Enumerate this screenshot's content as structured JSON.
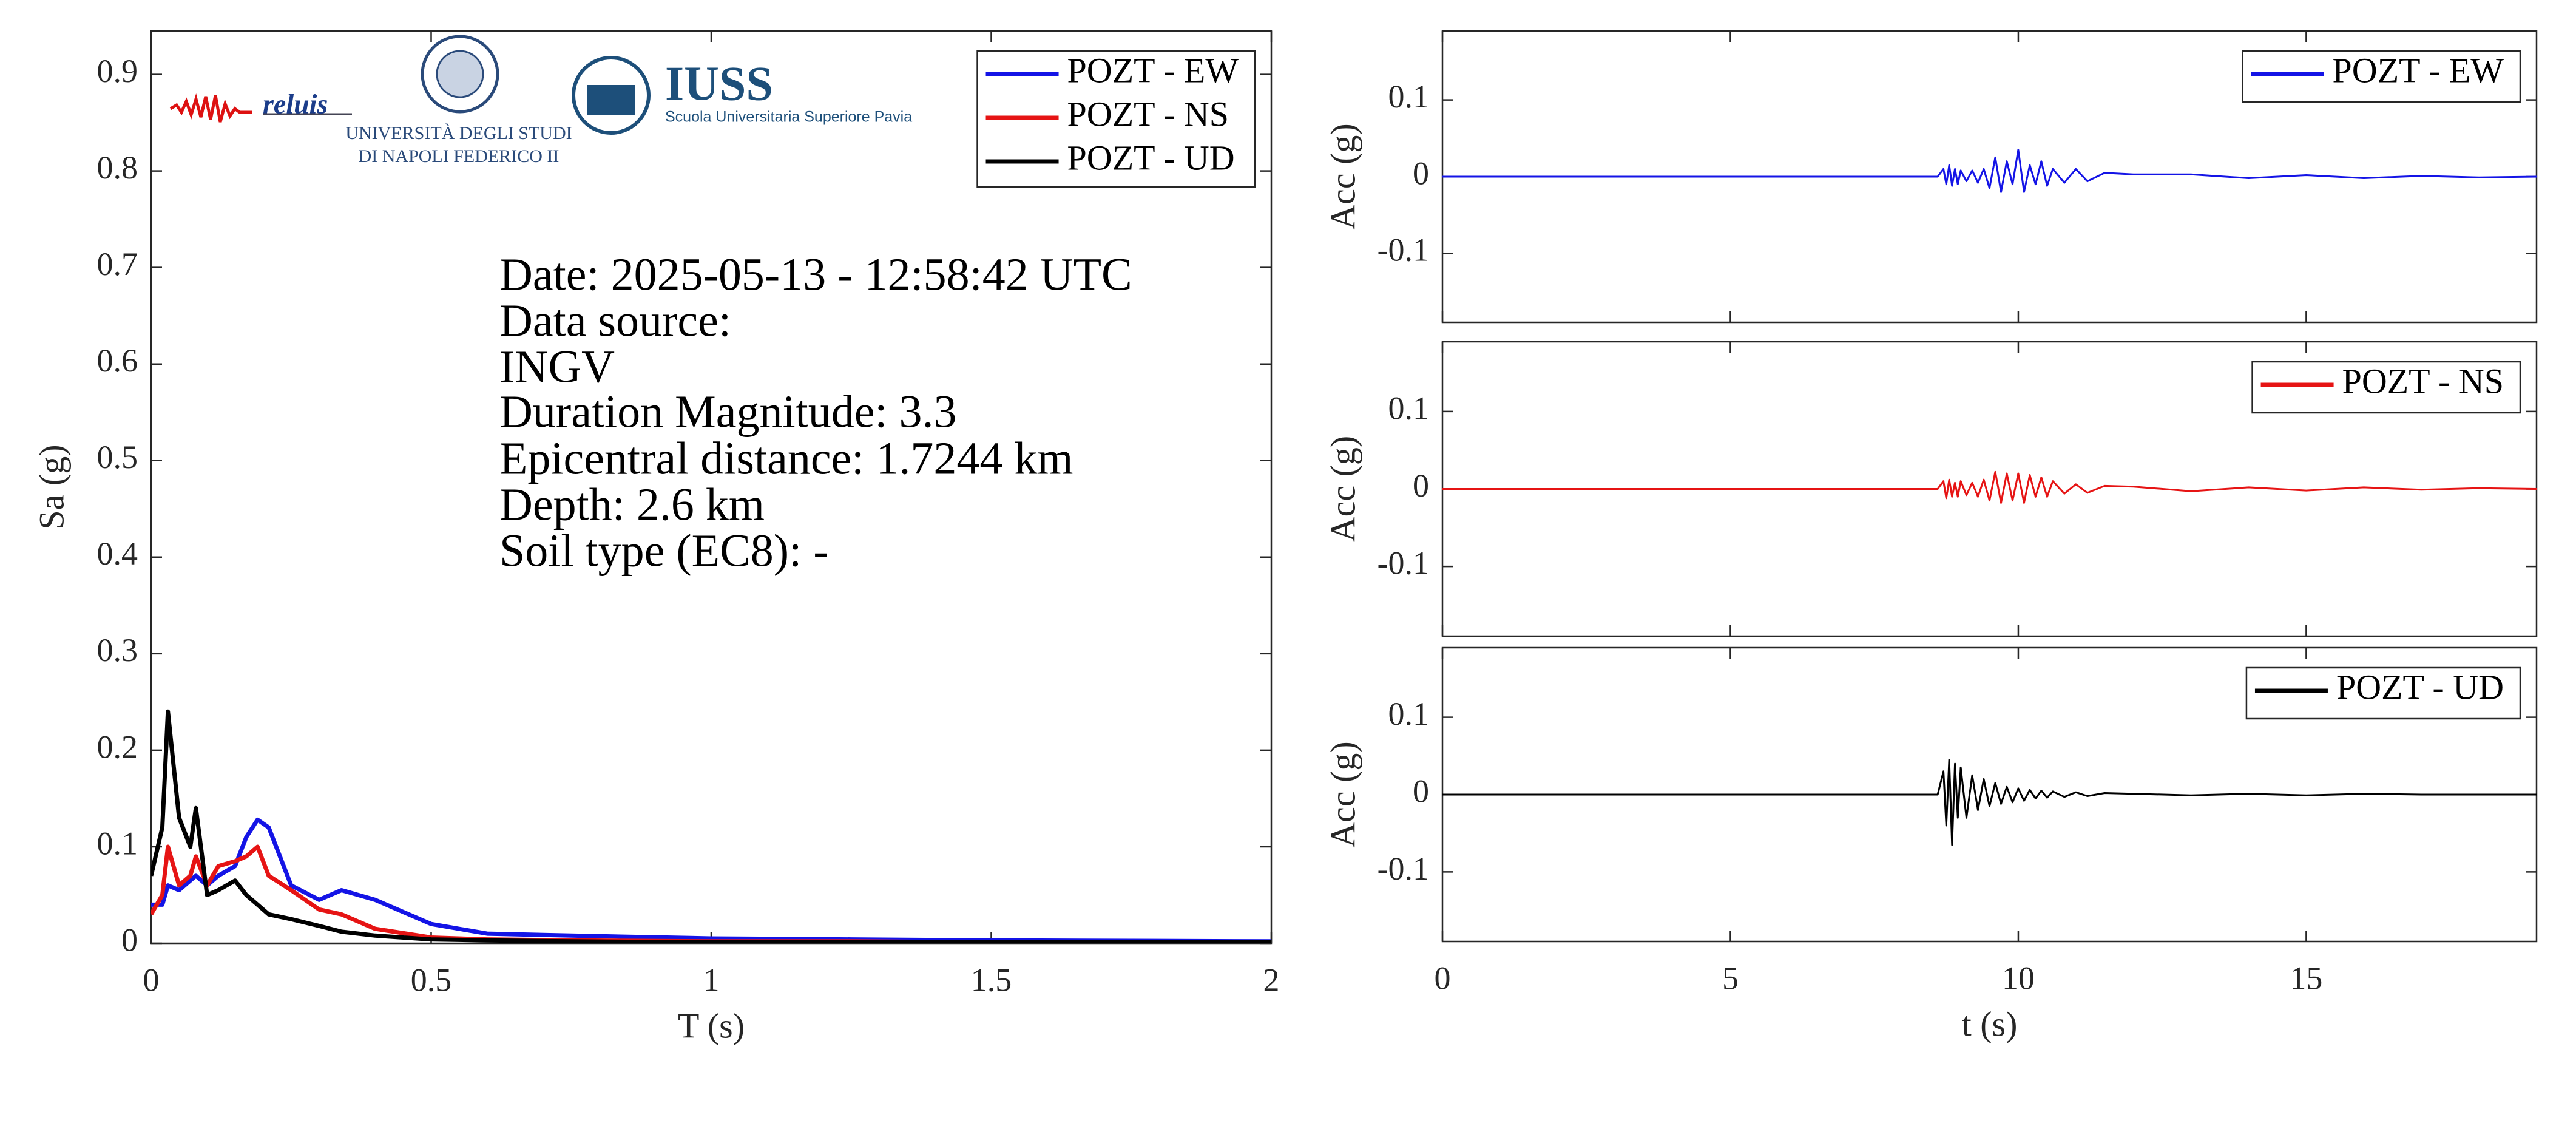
{
  "logos": [
    "reluis",
    "UNIVERSITÀ DEGLI STUDI",
    "DI NAPOLI FEDERICO II",
    "IUSS",
    "Scuola Universitaria Superiore Pavia"
  ],
  "chart_data": [
    {
      "type": "line",
      "xlabel": "T (s)",
      "ylabel": "Sa (g)",
      "x": [
        0,
        0.02,
        0.03,
        0.05,
        0.07,
        0.08,
        0.1,
        0.12,
        0.15,
        0.17,
        0.19,
        0.21,
        0.25,
        0.3,
        0.34,
        0.4,
        0.5,
        0.6,
        0.75,
        1.0,
        1.25,
        1.5,
        2.0
      ],
      "series": [
        {
          "name": "POZT - EW",
          "color": "#1414e6",
          "values": [
            0.04,
            0.04,
            0.06,
            0.055,
            0.065,
            0.07,
            0.06,
            0.07,
            0.08,
            0.11,
            0.128,
            0.12,
            0.06,
            0.045,
            0.055,
            0.045,
            0.02,
            0.01,
            0.008,
            0.005,
            0.004,
            0.003,
            0.002
          ]
        },
        {
          "name": "POZT - NS",
          "color": "#e61414",
          "values": [
            0.03,
            0.05,
            0.1,
            0.06,
            0.07,
            0.09,
            0.06,
            0.08,
            0.085,
            0.09,
            0.1,
            0.07,
            0.055,
            0.035,
            0.03,
            0.015,
            0.006,
            0.004,
            0.003,
            0.002,
            0.002,
            0.001,
            0.001
          ]
        },
        {
          "name": "POZT - UD",
          "color": "#000000",
          "values": [
            0.07,
            0.12,
            0.24,
            0.13,
            0.1,
            0.14,
            0.05,
            0.055,
            0.065,
            0.05,
            0.04,
            0.03,
            0.025,
            0.018,
            0.012,
            0.008,
            0.004,
            0.003,
            0.002,
            0.001,
            0.001,
            0.001,
            0.001
          ]
        }
      ],
      "xlim": [
        0,
        2
      ],
      "ylim": [
        0,
        0.945
      ],
      "xticks": [
        0,
        0.5,
        1,
        1.5,
        2
      ],
      "yticks": [
        0,
        0.1,
        0.2,
        0.3,
        0.4,
        0.5,
        0.6,
        0.7,
        0.8,
        0.9
      ],
      "legend": "upper right",
      "annotations": [
        "Date: 2025-05-13 - 12:58:42 UTC",
        "Data source:",
        "INGV",
        "Duration Magnitude: 3.3",
        "Epicentral distance: 1.7244 km",
        "Depth: 2.6 km",
        "Soil type (EC8): -"
      ]
    },
    {
      "type": "line",
      "ylabel": "Acc (g)",
      "x": [
        0,
        8.6,
        8.7,
        8.75,
        8.8,
        8.85,
        8.9,
        8.95,
        9.0,
        9.1,
        9.2,
        9.3,
        9.4,
        9.5,
        9.6,
        9.7,
        9.8,
        9.9,
        10.0,
        10.1,
        10.2,
        10.3,
        10.4,
        10.5,
        10.6,
        10.8,
        11.0,
        11.2,
        11.5,
        12,
        13,
        14,
        15,
        16,
        17,
        18,
        19
      ],
      "series": [
        {
          "name": "POZT - EW",
          "color": "#1414e6",
          "values": [
            0,
            0,
            0.01,
            -0.01,
            0.015,
            -0.012,
            0.01,
            -0.01,
            0.008,
            -0.006,
            0.008,
            -0.008,
            0.01,
            -0.015,
            0.025,
            -0.02,
            0.02,
            -0.01,
            0.035,
            -0.02,
            0.015,
            -0.01,
            0.02,
            -0.012,
            0.01,
            -0.008,
            0.01,
            -0.006,
            0.005,
            0.003,
            0.003,
            -0.002,
            0.002,
            -0.002,
            0.001,
            -0.001,
            0
          ]
        }
      ],
      "xlim": [
        0,
        19
      ],
      "ylim": [
        -0.19,
        0.19
      ],
      "xticks": [
        0,
        5,
        10,
        15
      ],
      "xtick_labels": false,
      "yticks": [
        -0.1,
        0,
        0.1
      ],
      "legend": "upper right"
    },
    {
      "type": "line",
      "ylabel": "Acc (g)",
      "x": [
        0,
        8.6,
        8.7,
        8.75,
        8.8,
        8.85,
        8.9,
        8.95,
        9.0,
        9.1,
        9.2,
        9.3,
        9.4,
        9.5,
        9.6,
        9.7,
        9.8,
        9.9,
        10.0,
        10.1,
        10.2,
        10.3,
        10.4,
        10.5,
        10.6,
        10.8,
        11.0,
        11.2,
        11.5,
        12,
        13,
        14,
        15,
        16,
        17,
        18,
        19
      ],
      "series": [
        {
          "name": "POZT - NS",
          "color": "#e61414",
          "values": [
            0,
            0,
            0.01,
            -0.012,
            0.012,
            -0.01,
            0.008,
            -0.01,
            0.01,
            -0.008,
            0.008,
            -0.01,
            0.012,
            -0.015,
            0.022,
            -0.018,
            0.02,
            -0.015,
            0.02,
            -0.018,
            0.018,
            -0.01,
            0.015,
            -0.01,
            0.01,
            -0.006,
            0.006,
            -0.005,
            0.004,
            0.003,
            -0.003,
            0.002,
            -0.002,
            0.002,
            -0.001,
            0.001,
            0
          ]
        }
      ],
      "xlim": [
        0,
        19
      ],
      "ylim": [
        -0.19,
        0.19
      ],
      "xticks": [
        0,
        5,
        10,
        15
      ],
      "xtick_labels": false,
      "yticks": [
        -0.1,
        0,
        0.1
      ],
      "legend": "upper right"
    },
    {
      "type": "line",
      "xlabel": "t (s)",
      "ylabel": "Acc (g)",
      "x": [
        0,
        8.6,
        8.7,
        8.75,
        8.8,
        8.85,
        8.9,
        8.95,
        9.0,
        9.1,
        9.2,
        9.3,
        9.4,
        9.5,
        9.6,
        9.7,
        9.8,
        9.9,
        10.0,
        10.1,
        10.2,
        10.3,
        10.4,
        10.5,
        10.6,
        10.8,
        11.0,
        11.2,
        11.5,
        12,
        13,
        14,
        15,
        16,
        17,
        18,
        19
      ],
      "series": [
        {
          "name": "POZT - UD",
          "color": "#000000",
          "values": [
            0,
            0,
            0.03,
            -0.04,
            0.045,
            -0.065,
            0.04,
            -0.03,
            0.035,
            -0.03,
            0.025,
            -0.02,
            0.02,
            -0.015,
            0.015,
            -0.012,
            0.01,
            -0.01,
            0.008,
            -0.008,
            0.006,
            -0.005,
            0.005,
            -0.004,
            0.004,
            -0.003,
            0.003,
            -0.002,
            0.002,
            0.001,
            -0.001,
            0.001,
            -0.001,
            0.001,
            0,
            0,
            0
          ]
        }
      ],
      "xlim": [
        0,
        19
      ],
      "ylim": [
        -0.19,
        0.19
      ],
      "xticks": [
        0,
        5,
        10,
        15
      ],
      "yticks": [
        -0.1,
        0,
        0.1
      ],
      "legend": "upper right"
    }
  ]
}
